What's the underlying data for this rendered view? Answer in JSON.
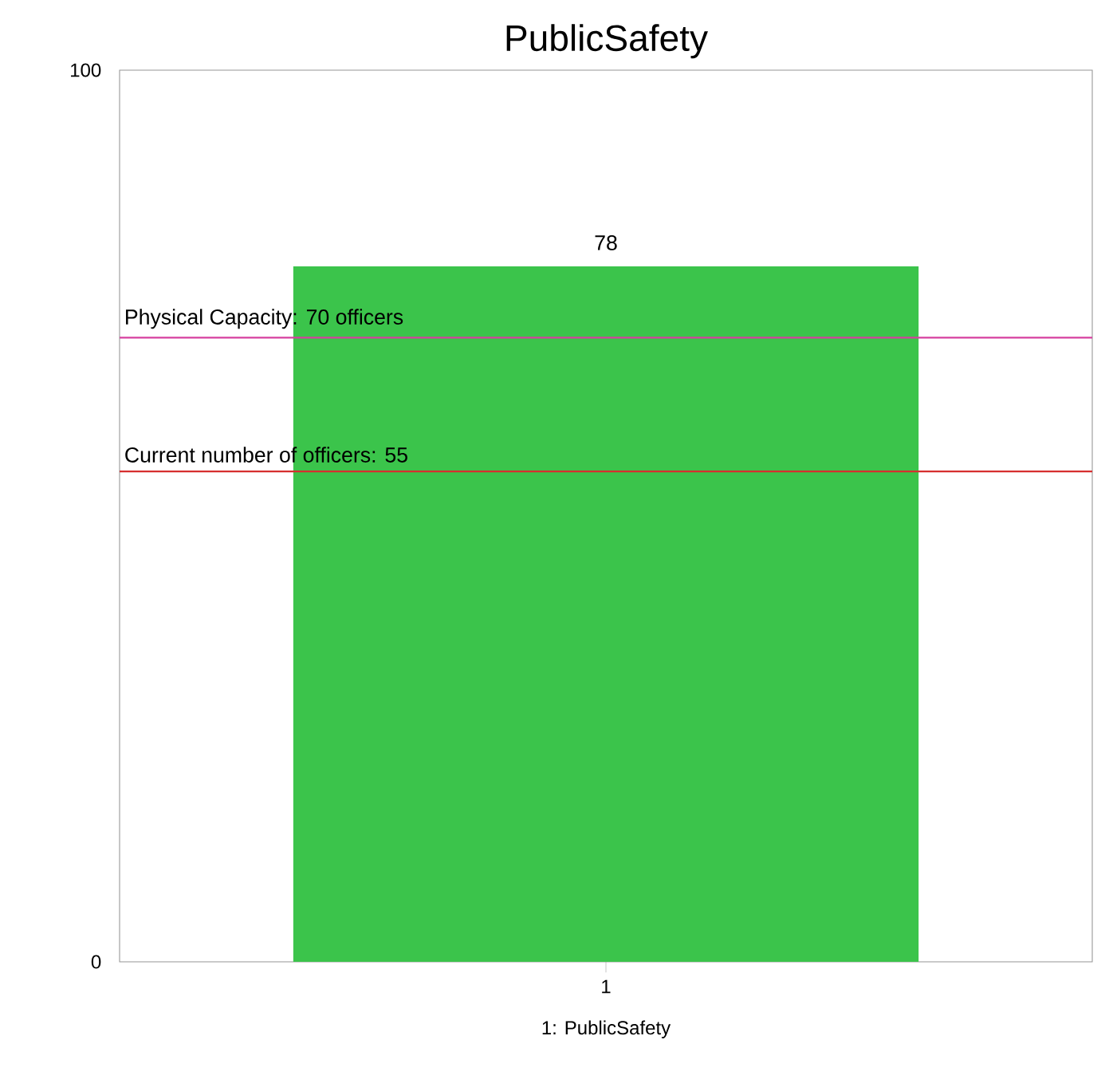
{
  "chart_data": {
    "type": "bar",
    "title": "PublicSafety",
    "xlabel": "1: PublicSafety",
    "categories": [
      "1"
    ],
    "values": [
      78
    ],
    "color": "#3bc44b",
    "ylim": [
      0,
      100
    ],
    "yticks": [
      0,
      100
    ],
    "data_labels": true,
    "grid": false,
    "ref_lines": [
      {
        "axis": "y",
        "value": 70,
        "label": "Physical Capacity: 70 officers",
        "color": "#d6409f"
      },
      {
        "axis": "y",
        "value": 55,
        "label": "Current number of officers: 55",
        "color": "#d62f2f"
      }
    ]
  }
}
